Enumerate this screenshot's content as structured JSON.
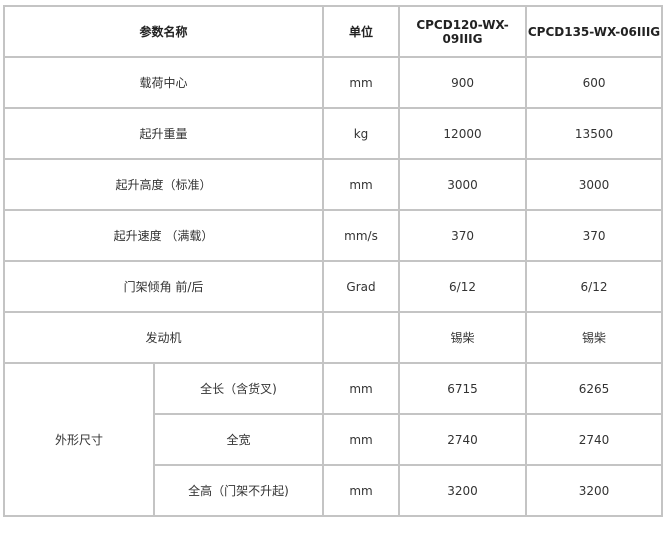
{
  "header": {
    "param": "参数名称",
    "unit": "单位",
    "model1": "CPCD120-WX-09IIIG",
    "model2": "CPCD135-WX-06IIIG"
  },
  "rows": [
    {
      "name": "载荷中心",
      "unit": "mm",
      "v1": "900",
      "v2": "600"
    },
    {
      "name": "起升重量",
      "unit": "kg",
      "v1": "12000",
      "v2": "13500"
    },
    {
      "name": "起升高度（标准）",
      "unit": "mm",
      "v1": "3000",
      "v2": "3000"
    },
    {
      "name": "起升速度 （满载）",
      "unit": "mm/s",
      "v1": "370",
      "v2": "370"
    },
    {
      "name": "门架倾角 前/后",
      "unit": "Grad",
      "v1": "6/12",
      "v2": "6/12"
    },
    {
      "name": "发动机",
      "unit": "",
      "v1": "锡柴",
      "v2": "锡柴"
    }
  ],
  "group": {
    "name": "外形尺寸",
    "rows": [
      {
        "name": "全长（含货叉)",
        "unit": "mm",
        "v1": "6715",
        "v2": "6265"
      },
      {
        "name": "全宽",
        "unit": "mm",
        "v1": "2740",
        "v2": "2740"
      },
      {
        "name": "全高（门架不升起)",
        "unit": "mm",
        "v1": "3200",
        "v2": "3200"
      }
    ]
  }
}
